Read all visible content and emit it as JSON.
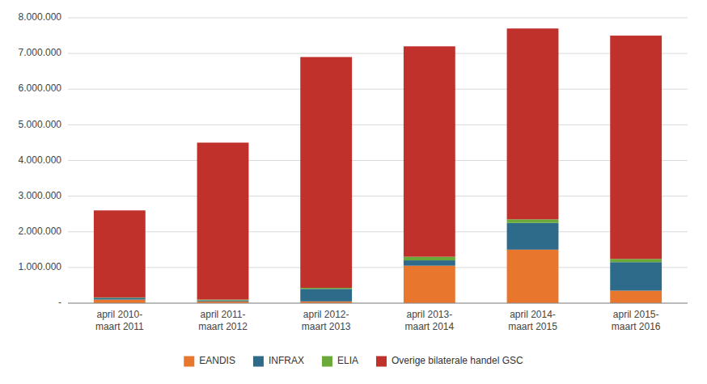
{
  "chart_data": {
    "type": "bar",
    "stacked": true,
    "categories": [
      "april 2010-\nmaart 2011",
      "april 2011-\nmaart 2012",
      "april 2012-\nmaart 2013",
      "april 2013-\nmaart 2014",
      "april 2014-\nmaart 2015",
      "april 2015-\nmaart 2016"
    ],
    "series": [
      {
        "name": "EANDIS",
        "color": "#E8762C",
        "values": [
          100000,
          50000,
          50000,
          1050000,
          1500000,
          350000
        ]
      },
      {
        "name": "INFRAX",
        "color": "#2E6B8A",
        "values": [
          50000,
          30000,
          350000,
          150000,
          750000,
          800000
        ]
      },
      {
        "name": "ELIA",
        "color": "#6AAA3A",
        "values": [
          10000,
          20000,
          30000,
          100000,
          100000,
          90000
        ]
      },
      {
        "name": "Overige bilaterale handel GSC",
        "color": "#C0312B",
        "values": [
          2440000,
          4400000,
          6470000,
          5900000,
          5350000,
          6260000
        ]
      }
    ],
    "ylim": [
      0,
      8000000
    ],
    "yticks": [
      {
        "value": 0,
        "label": "-"
      },
      {
        "value": 1000000,
        "label": "1.000.000"
      },
      {
        "value": 2000000,
        "label": "2.000.000"
      },
      {
        "value": 3000000,
        "label": "3.000.000"
      },
      {
        "value": 4000000,
        "label": "4.000.000"
      },
      {
        "value": 5000000,
        "label": "5.000.000"
      },
      {
        "value": 6000000,
        "label": "6.000.000"
      },
      {
        "value": 7000000,
        "label": "7.000.000"
      },
      {
        "value": 8000000,
        "label": "8.000.000"
      }
    ],
    "grid": true,
    "legend": "bottom"
  }
}
